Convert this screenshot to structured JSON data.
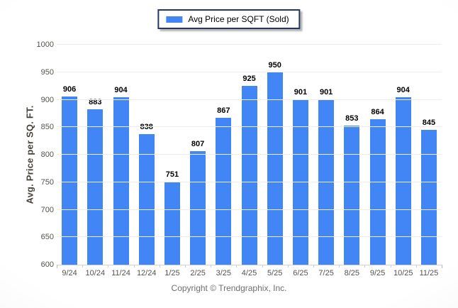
{
  "legend": {
    "label": "Avg Price per SQFT (Sold)",
    "swatch_color": "#4285f4"
  },
  "y_axis": {
    "title": "Avg. Price per SQ. FT."
  },
  "footer": {
    "copyright": "Copyright © Trendgraphix, Inc."
  },
  "chart_data": {
    "type": "bar",
    "title": "",
    "xlabel": "",
    "ylabel": "Avg. Price per SQ. FT.",
    "categories": [
      "9/24",
      "10/24",
      "11/24",
      "12/24",
      "1/25",
      "2/25",
      "3/25",
      "4/25",
      "5/25",
      "6/25",
      "7/25",
      "8/25",
      "9/25",
      "10/25",
      "11/25"
    ],
    "values": [
      906,
      883,
      904,
      838,
      751,
      807,
      867,
      925,
      950,
      901,
      901,
      853,
      864,
      904,
      845
    ],
    "ylim": [
      600,
      1000
    ],
    "ytick_step": 50,
    "grid": true,
    "legend": [
      "Avg Price per SQFT (Sold)"
    ],
    "legend_position": "top-center",
    "bar_color": "#4285f4",
    "data_labels": true
  }
}
